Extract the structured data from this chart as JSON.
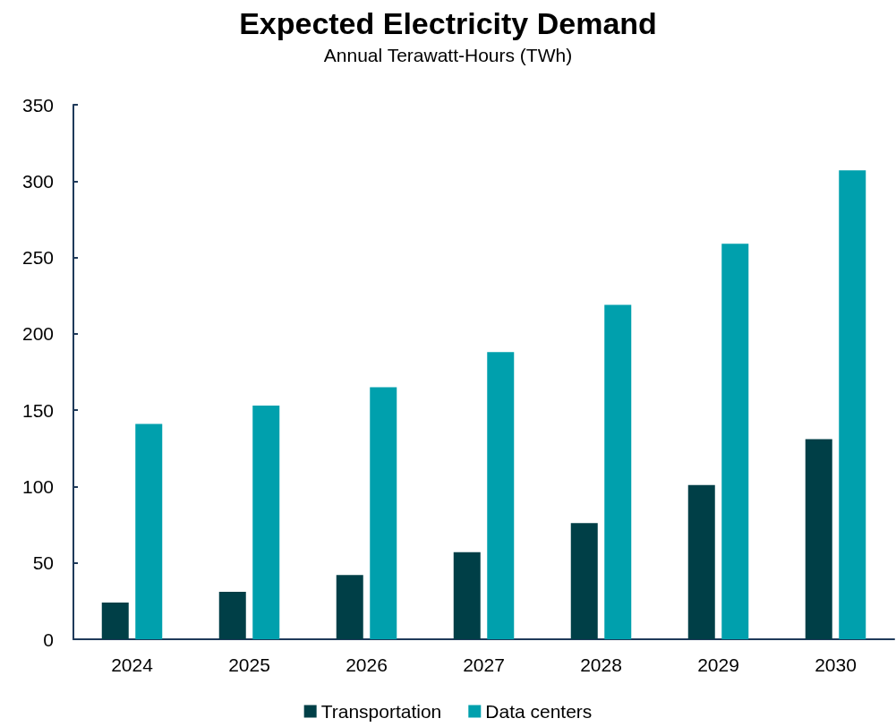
{
  "chart_data": {
    "type": "bar",
    "title": "Expected Electricity Demand",
    "subtitle": "Annual Terawatt-Hours (TWh)",
    "categories": [
      "2024",
      "2025",
      "2026",
      "2027",
      "2028",
      "2029",
      "2030"
    ],
    "series": [
      {
        "name": "Transportation",
        "color": "#003f47",
        "values": [
          24,
          31,
          42,
          57,
          76,
          101,
          131
        ]
      },
      {
        "name": "Data centers",
        "color": "#00a0ad",
        "values": [
          141,
          153,
          165,
          188,
          219,
          259,
          307
        ]
      }
    ],
    "ylim": [
      0,
      350
    ],
    "yticks": [
      0,
      50,
      100,
      150,
      200,
      250,
      300,
      350
    ],
    "grid": false,
    "legend": "bottom"
  }
}
